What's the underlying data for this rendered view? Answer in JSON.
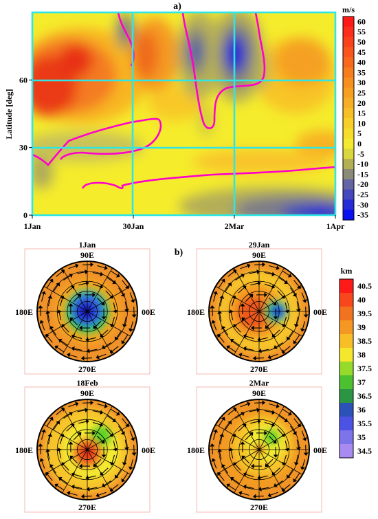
{
  "chart_data": [
    {
      "type": "heatmap",
      "panel_label": "a)",
      "ylabel": "Latitude [deg]",
      "x_tick_labels": [
        "1Jan",
        "30Jan",
        "2Mar",
        "1Apr"
      ],
      "y_tick_labels": [
        "0",
        "30",
        "60"
      ],
      "ylim": [
        0,
        90
      ],
      "grid": true,
      "colorbar": {
        "unit": "m/s",
        "levels": [
          60,
          55,
          50,
          45,
          40,
          35,
          30,
          25,
          20,
          15,
          10,
          5,
          0,
          -5,
          -10,
          -15,
          -20,
          -25,
          -30,
          -35
        ]
      },
      "colors": {
        "grid": "#2ee6e6",
        "zero_contour": "#ff00cc"
      }
    },
    {
      "type": "heatmap",
      "panel_label": "b)",
      "projection": "polar",
      "maps": [
        {
          "title": "1Jan",
          "lon_top": "90E",
          "lon_left": "180E",
          "lon_right": "00E",
          "lon_bottom": "270E"
        },
        {
          "title": "29Jan",
          "lon_top": "90E",
          "lon_left": "180E",
          "lon_right": "00E",
          "lon_bottom": "270E"
        },
        {
          "title": "18Feb",
          "lon_top": "90E",
          "lon_left": "180E",
          "lon_right": "00E",
          "lon_bottom": "270E"
        },
        {
          "title": "2Mar",
          "lon_top": "90E",
          "lon_left": "180E",
          "lon_right": "00E",
          "lon_bottom": "270E"
        }
      ],
      "colorbar": {
        "unit": "km",
        "levels": [
          "40.5",
          "40",
          "39.5",
          "39",
          "38.5",
          "38",
          "37.5",
          "37",
          "36.5",
          "36",
          "35.5",
          "35",
          "34.5"
        ]
      }
    }
  ]
}
